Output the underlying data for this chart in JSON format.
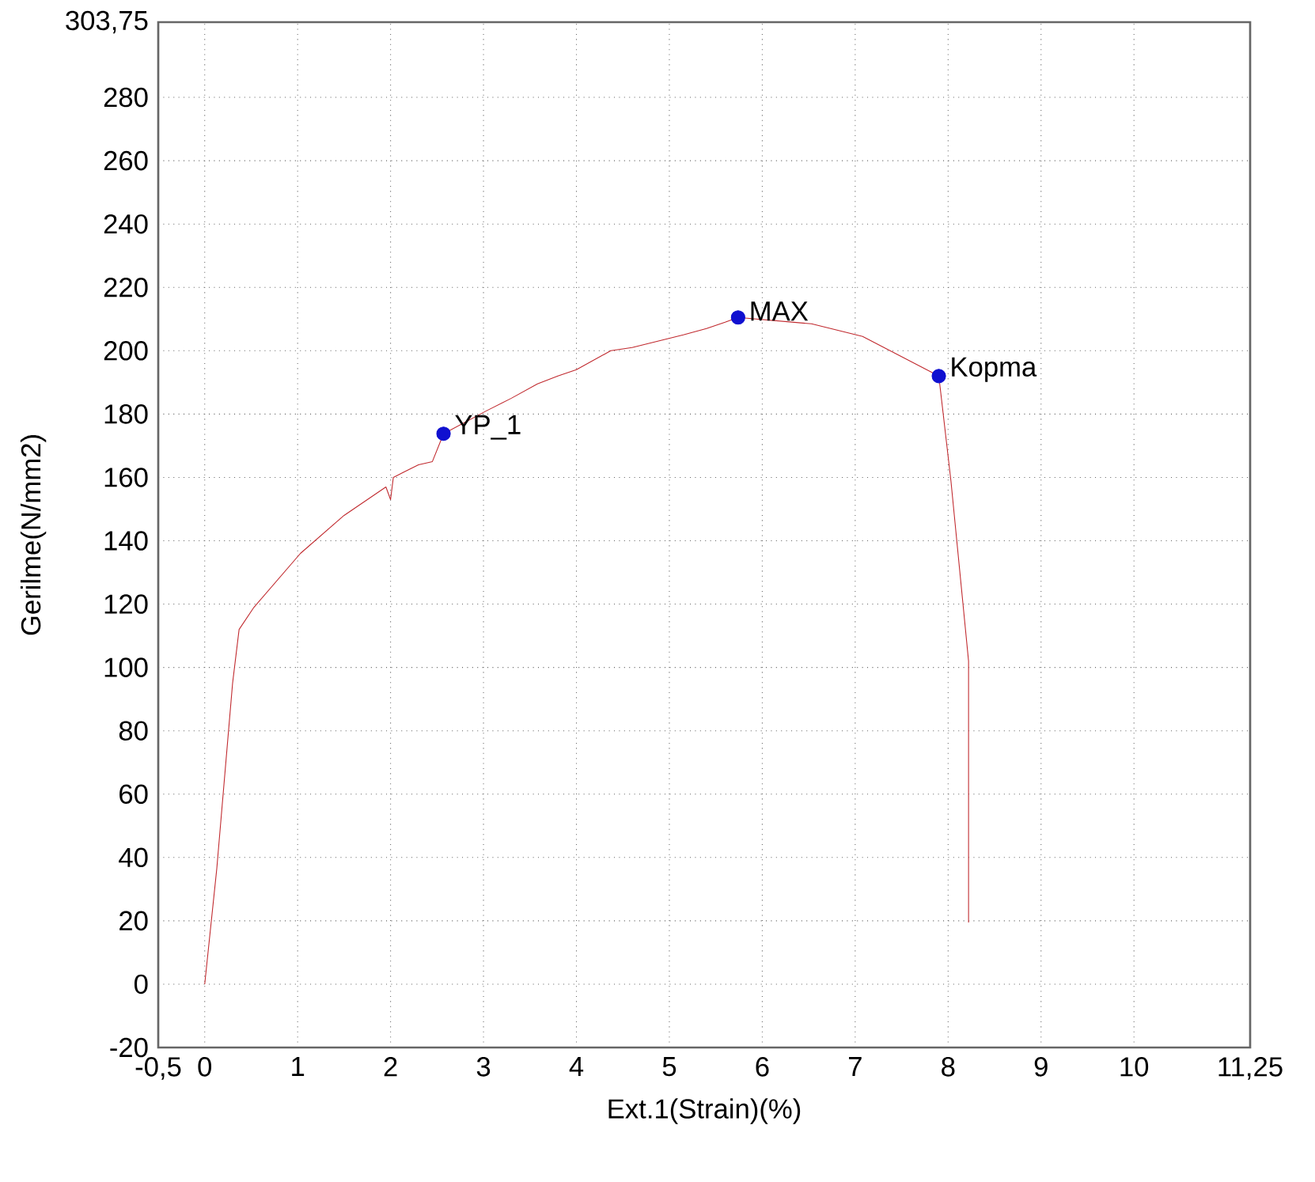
{
  "chart_data": {
    "type": "line",
    "xlabel": "Ext.1(Strain)(%)",
    "ylabel": "Gerilme(N/mm2)",
    "xlim": [
      -0.5,
      11.25
    ],
    "ylim": [
      -20,
      303.75
    ],
    "xticks": [
      {
        "value": -0.5,
        "label": "-0,5"
      },
      0,
      1,
      2,
      3,
      4,
      5,
      6,
      7,
      8,
      9,
      10,
      {
        "value": 11.25,
        "label": "11,25"
      }
    ],
    "yticks": [
      -20,
      0,
      20,
      40,
      60,
      80,
      100,
      120,
      140,
      160,
      180,
      200,
      220,
      240,
      260,
      280,
      {
        "value": 303.75,
        "label": "303,75"
      }
    ],
    "grid": true,
    "line_style": "solid",
    "marker": "none",
    "series": [
      {
        "type": "scatter",
        "color": "#1010d0",
        "marker": "circle",
        "x": [
          2.57,
          5.74,
          7.9
        ],
        "values": [
          173.8,
          210.5,
          192
        ]
      },
      {
        "color": "#c0282d",
        "x": [
          0,
          0.13,
          0.3,
          0.37,
          0.53,
          1.03,
          1.5,
          1.95,
          2.0,
          2.03,
          2.3,
          2.45,
          2.57,
          3.03,
          3.3,
          3.58,
          3.8,
          4.0,
          4.37,
          4.6,
          5.15,
          5.4,
          5.6,
          5.74,
          6.53,
          7.08,
          7.9,
          8.03,
          8.22,
          8.22
        ],
        "values": [
          0,
          36.5,
          95,
          112,
          119,
          136,
          148,
          157,
          153,
          160,
          164,
          165,
          173.8,
          181,
          185,
          189.5,
          192,
          194,
          200,
          201,
          205,
          207,
          209,
          210.5,
          208.5,
          204.5,
          192,
          159,
          102,
          19.5
        ]
      }
    ],
    "annotations": [
      {
        "text": "YP_1",
        "x": 2.57,
        "y": 173.8
      },
      {
        "text": "MAX",
        "x": 5.74,
        "y": 210.5
      },
      {
        "text": "Kopma",
        "x": 7.9,
        "y": 192
      }
    ]
  }
}
